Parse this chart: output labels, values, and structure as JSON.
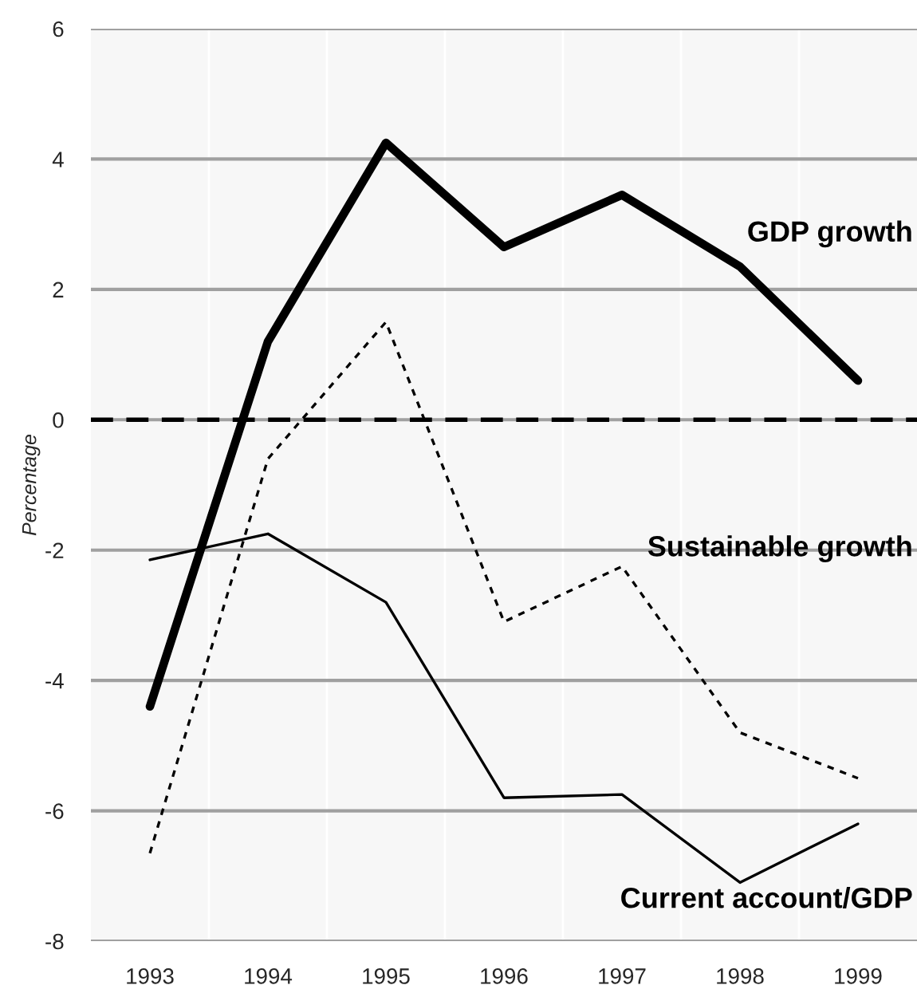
{
  "chart_data": {
    "type": "line",
    "ylabel": "Percentage",
    "categories": [
      "1993",
      "1994",
      "1995",
      "1996",
      "1997",
      "1998",
      "1999"
    ],
    "series": [
      {
        "name": "GDP growth",
        "color": "#000000",
        "line_style": "solid",
        "values": [
          -4.4,
          1.2,
          4.25,
          2.65,
          3.45,
          2.35,
          0.6
        ]
      },
      {
        "name": "Sustainable growth",
        "color": "#000000",
        "line_style": "dashed",
        "values": [
          -6.65,
          -0.6,
          1.5,
          -3.1,
          -2.25,
          -4.8,
          -5.5
        ]
      },
      {
        "name": "Current account/GDP",
        "color": "#000000",
        "line_style": "solid",
        "values": [
          -2.15,
          -1.75,
          -2.8,
          -5.8,
          -5.75,
          -7.1,
          -6.2
        ]
      }
    ],
    "ylim": [
      -8,
      6
    ],
    "yticks": [
      -8,
      -6,
      -4,
      -2,
      0,
      2,
      4,
      6
    ],
    "ref_lines": [
      {
        "axis": "y",
        "value": 0,
        "color": "#000000",
        "line_style": "dashed"
      }
    ],
    "grid": "y",
    "legend": false
  }
}
